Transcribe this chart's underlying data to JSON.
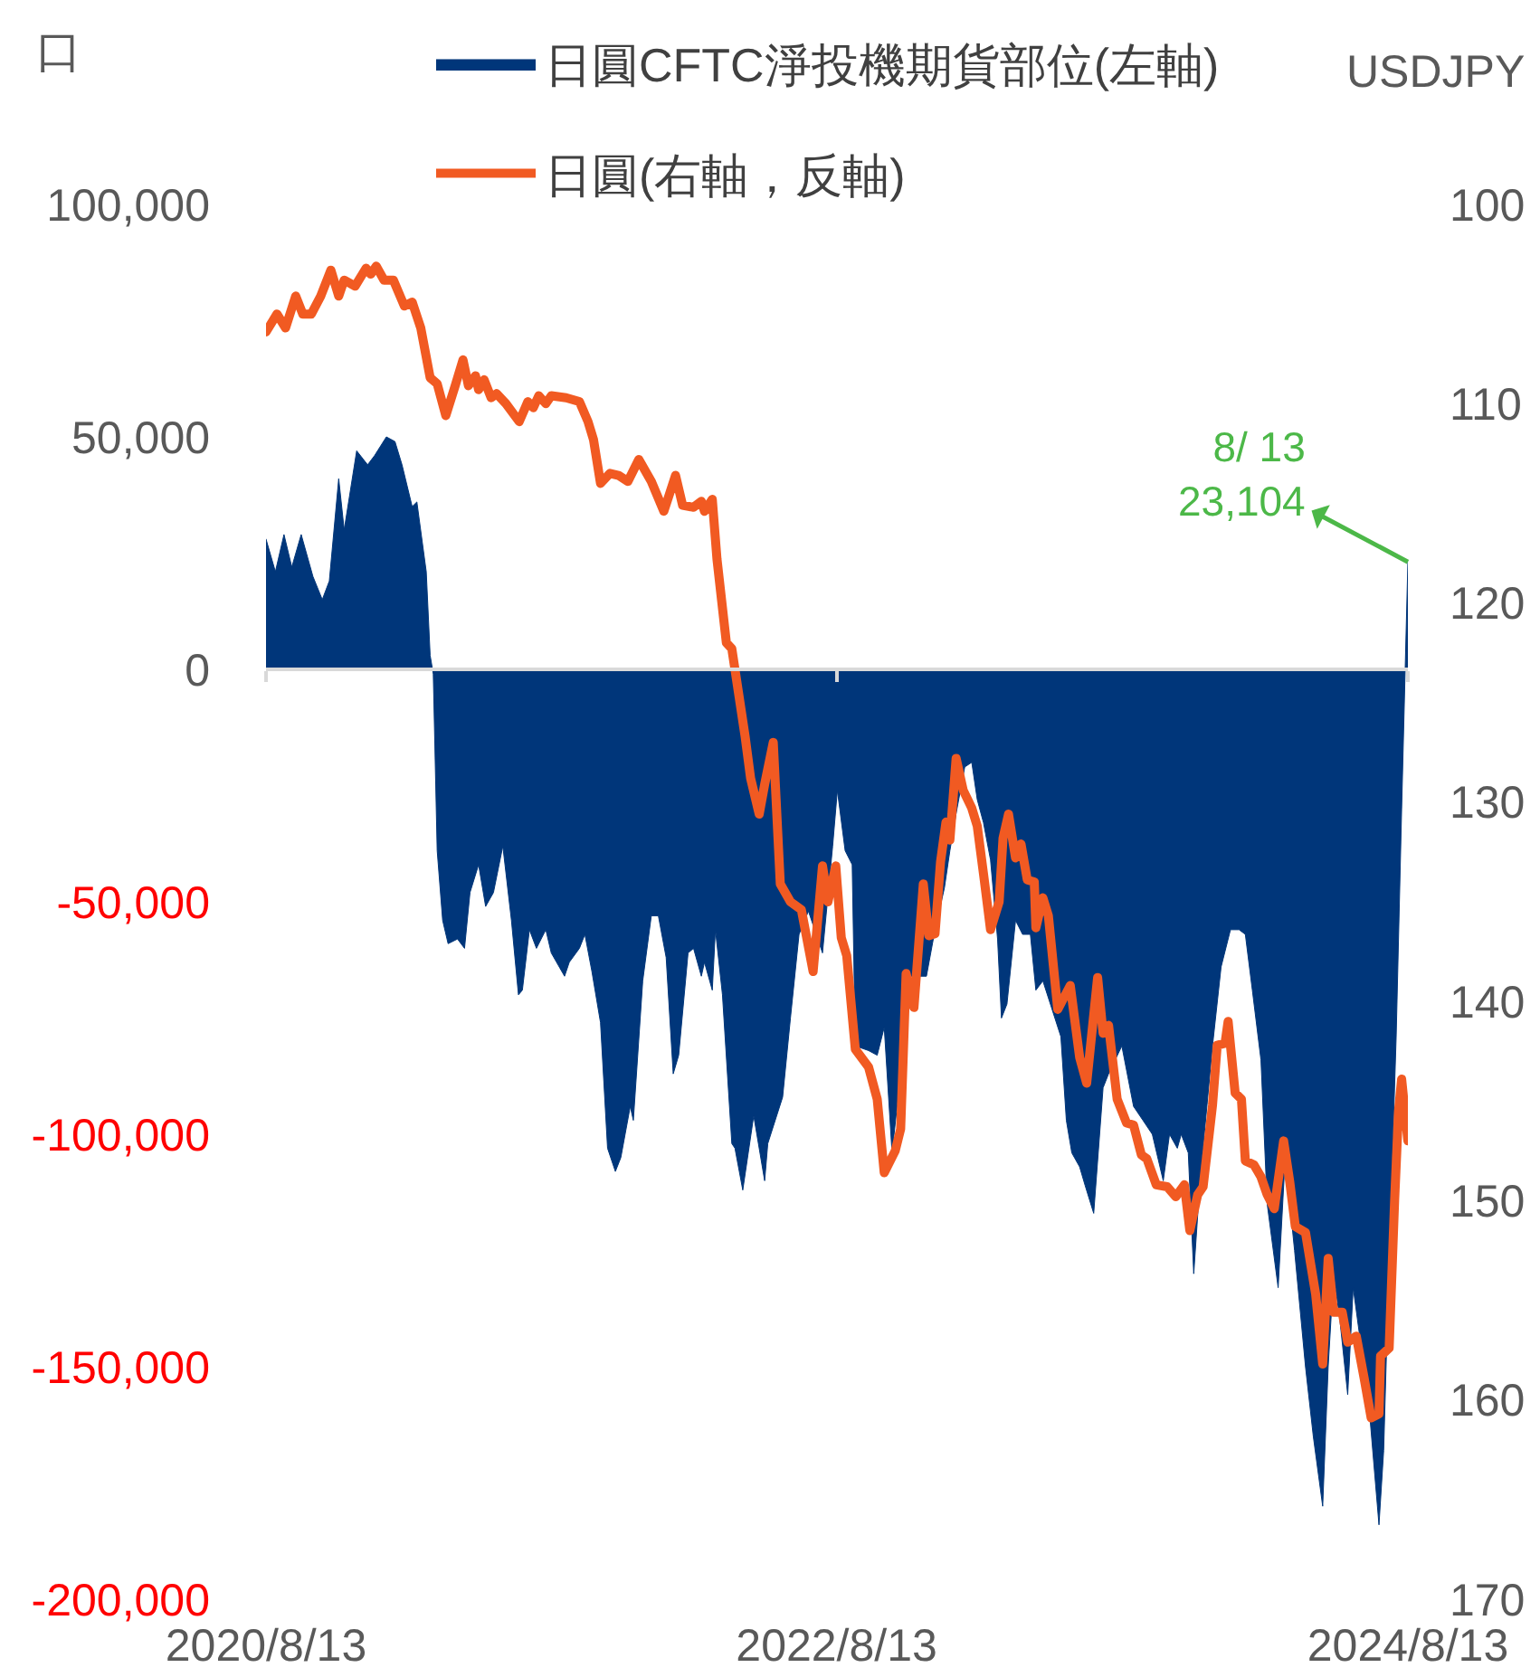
{
  "chart_data": {
    "type": "area",
    "ylabel": "口",
    "y2label": "USDJPY",
    "legend": "top",
    "grid": false,
    "xlim": [
      "2020-08-13",
      "2024-08-13"
    ],
    "xticks": [
      {
        "value": "2020-08-13",
        "label": "2020/8/13"
      },
      {
        "value": "2022-08-13",
        "label": "2022/8/13"
      },
      {
        "value": "2024-08-13",
        "label": "2024/8/13"
      }
    ],
    "ylim": [
      -200000,
      100000
    ],
    "yticks": [
      {
        "value": 100000,
        "label": "100,000"
      },
      {
        "value": 50000,
        "label": "50,000"
      },
      0,
      {
        "value": -50000,
        "label": "-50,000"
      },
      {
        "value": -100000,
        "label": "-100,000"
      },
      {
        "value": -150000,
        "label": "-150,000"
      },
      {
        "value": -200000,
        "label": "-200,000"
      }
    ],
    "y2lim": [
      170,
      100
    ],
    "y2ticks": [
      100,
      110,
      120,
      130,
      140,
      150,
      160,
      170
    ],
    "ref_lines": [
      {
        "axis": "y",
        "value": 0,
        "color": "#d9d9d9"
      }
    ],
    "annotations": [
      {
        "text": "8/ 13\n23,104",
        "x": "2024-08-13",
        "y": 23104
      }
    ],
    "series": [
      {
        "name": "日圓CFTC淨投機期貨部位(左軸)",
        "color": "#00367a",
        "x": [
          "2020-08-13",
          "2020-08-25",
          "2020-09-05",
          "2020-09-15",
          "2020-09-27",
          "2020-10-12",
          "2020-10-24",
          "2020-11-02",
          "2020-11-14",
          "2020-11-21",
          "2020-12-07",
          "2020-12-21",
          "2020-12-30",
          "2021-01-14",
          "2021-01-25",
          "2021-02-03",
          "2021-02-16",
          "2021-02-22",
          "2021-03-06",
          "2021-03-11",
          "2021-03-15",
          "2021-03-20",
          "2021-03-27",
          "2021-04-03",
          "2021-04-15",
          "2021-04-24",
          "2021-05-01",
          "2021-05-12",
          "2021-05-21",
          "2021-05-31",
          "2021-06-12",
          "2021-06-23",
          "2021-07-02",
          "2021-07-07",
          "2021-07-16",
          "2021-07-25",
          "2021-08-06",
          "2021-08-13",
          "2021-08-30",
          "2021-09-05",
          "2021-09-18",
          "2021-09-25",
          "2021-10-04",
          "2021-10-15",
          "2021-10-24",
          "2021-11-03",
          "2021-11-10",
          "2021-11-22",
          "2021-11-26",
          "2021-12-08",
          "2021-12-19",
          "2021-12-28",
          "2022-01-07",
          "2022-01-16",
          "2022-01-23",
          "2022-02-04",
          "2022-02-11",
          "2022-02-21",
          "2022-02-25",
          "2022-03-07",
          "2022-03-11",
          "2022-03-20",
          "2022-04-01",
          "2022-04-05",
          "2022-04-15",
          "2022-04-29",
          "2022-05-13",
          "2022-05-17",
          "2022-06-05",
          "2022-06-15",
          "2022-06-26",
          "2022-07-08",
          "2022-07-26",
          "2022-08-08",
          "2022-08-14",
          "2022-08-24",
          "2022-09-02",
          "2022-09-06",
          "2022-09-23",
          "2022-10-04",
          "2022-10-13",
          "2022-10-23",
          "2022-11-01",
          "2022-11-08",
          "2022-12-06",
          "2022-12-17",
          "2022-12-29",
          "2023-01-05",
          "2023-01-13",
          "2023-01-24",
          "2023-02-02",
          "2023-02-09",
          "2023-02-17",
          "2023-02-26",
          "2023-03-07",
          "2023-03-12",
          "2023-03-19",
          "2023-03-30",
          "2023-04-08",
          "2023-04-18",
          "2023-04-25",
          "2023-05-04",
          "2023-05-27",
          "2023-06-03",
          "2023-06-10",
          "2023-06-20",
          "2023-06-27",
          "2023-07-08",
          "2023-07-20",
          "2023-07-27",
          "2023-08-13",
          "2023-08-28",
          "2023-09-09",
          "2023-09-21",
          "2023-10-05",
          "2023-10-13",
          "2023-10-23",
          "2023-10-28",
          "2023-11-06",
          "2023-11-13",
          "2023-11-21",
          "2023-12-07",
          "2023-12-18",
          "2023-12-30",
          "2024-01-10",
          "2024-01-18",
          "2024-01-27",
          "2024-02-07",
          "2024-02-15",
          "2024-02-29",
          "2024-03-09",
          "2024-03-21",
          "2024-04-04",
          "2024-04-14",
          "2024-04-26",
          "2024-05-03",
          "2024-05-10",
          "2024-05-18",
          "2024-05-28",
          "2024-06-04",
          "2024-06-16",
          "2024-06-25",
          "2024-07-07",
          "2024-07-13",
          "2024-07-20",
          "2024-07-29",
          "2024-08-05",
          "2024-08-13"
        ],
        "values": [
          28000,
          21000,
          29000,
          22000,
          29000,
          20000,
          15000,
          19000,
          41000,
          30000,
          47000,
          44000,
          46000,
          50000,
          49000,
          44000,
          35000,
          36000,
          21000,
          3000,
          -1000,
          -39000,
          -54000,
          -59000,
          -58000,
          -60000,
          -48000,
          -42000,
          -51000,
          -48000,
          -38000,
          -54000,
          -70000,
          -69000,
          -56000,
          -60000,
          -56000,
          -61000,
          -66000,
          -63000,
          -60000,
          -57000,
          -65000,
          -76000,
          -103000,
          -108000,
          -105000,
          -94000,
          -97000,
          -67000,
          -53000,
          -53000,
          -62000,
          -87000,
          -83000,
          -61000,
          -60000,
          -66000,
          -63000,
          -69000,
          -56000,
          -70000,
          -102000,
          -103000,
          -112000,
          -96000,
          -110000,
          -102000,
          -92000,
          -75000,
          -57000,
          -52000,
          -61000,
          -38000,
          -26000,
          -39000,
          -42000,
          -81000,
          -82000,
          -83000,
          -77000,
          -104000,
          -90000,
          -66000,
          -66000,
          -56000,
          -47000,
          -39000,
          -31000,
          -21000,
          -20000,
          -28000,
          -33000,
          -41000,
          -58000,
          -75000,
          -72000,
          -54000,
          -57000,
          -57000,
          -69000,
          -67000,
          -79000,
          -97000,
          -104000,
          -107000,
          -111000,
          -117000,
          -90000,
          -87000,
          -81000,
          -94000,
          -97000,
          -100000,
          -110000,
          -100000,
          -103000,
          -100000,
          -104000,
          -130000,
          -110000,
          -81000,
          -64000,
          -56000,
          -56000,
          -57000,
          -69000,
          -84000,
          -115000,
          -133000,
          -105000,
          -125000,
          -150000,
          -165000,
          -180000,
          -150000,
          -130000,
          -140000,
          -156000,
          -133000,
          -148000,
          -160000,
          -184000,
          -168000,
          -127000,
          -79000,
          -30000,
          23104
        ]
      },
      {
        "name": "日圓(右軸，反軸)",
        "type": "line",
        "color": "#f15a22",
        "axis": "y2",
        "x": [
          "2020-08-13",
          "2020-08-27",
          "2020-09-07",
          "2020-09-20",
          "2020-09-29",
          "2020-10-10",
          "2020-10-22",
          "2020-11-04",
          "2020-11-14",
          "2020-11-21",
          "2020-12-05",
          "2020-12-19",
          "2020-12-25",
          "2021-01-01",
          "2021-01-11",
          "2021-01-23",
          "2021-02-06",
          "2021-02-16",
          "2021-02-27",
          "2021-03-11",
          "2021-03-20",
          "2021-03-31",
          "2021-04-12",
          "2021-04-22",
          "2021-04-29",
          "2021-05-08",
          "2021-05-12",
          "2021-05-19",
          "2021-05-28",
          "2021-06-04",
          "2021-06-16",
          "2021-07-03",
          "2021-07-14",
          "2021-07-21",
          "2021-07-28",
          "2021-08-06",
          "2021-08-13",
          "2021-09-01",
          "2021-09-18",
          "2021-09-29",
          "2021-10-06",
          "2021-10-15",
          "2021-10-27",
          "2021-11-07",
          "2021-11-19",
          "2021-12-03",
          "2021-12-19",
          "2022-01-04",
          "2022-01-19",
          "2022-01-28",
          "2022-02-11",
          "2022-02-21",
          "2022-02-25",
          "2022-03-07",
          "2022-03-13",
          "2022-03-25",
          "2022-04-01",
          "2022-04-18",
          "2022-04-25",
          "2022-05-06",
          "2022-05-13",
          "2022-05-24",
          "2022-06-02",
          "2022-06-15",
          "2022-06-29",
          "2022-07-14",
          "2022-07-26",
          "2022-08-02",
          "2022-08-12",
          "2022-08-19",
          "2022-08-26",
          "2022-09-06",
          "2022-09-23",
          "2022-10-04",
          "2022-10-13",
          "2022-10-27",
          "2022-11-03",
          "2022-11-10",
          "2022-11-20",
          "2022-12-02",
          "2022-12-09",
          "2022-12-17",
          "2022-12-24",
          "2022-12-31",
          "2023-01-05",
          "2023-01-13",
          "2023-01-22",
          "2023-02-02",
          "2023-02-09",
          "2023-02-17",
          "2023-02-26",
          "2023-03-09",
          "2023-03-14",
          "2023-03-21",
          "2023-03-30",
          "2023-04-06",
          "2023-04-14",
          "2023-04-23",
          "2023-04-25",
          "2023-05-04",
          "2023-05-11",
          "2023-05-23",
          "2023-06-08",
          "2023-06-20",
          "2023-06-29",
          "2023-07-13",
          "2023-07-20",
          "2023-07-27",
          "2023-08-07",
          "2023-08-19",
          "2023-08-28",
          "2023-09-07",
          "2023-09-14",
          "2023-09-26",
          "2023-10-10",
          "2023-10-21",
          "2023-11-01",
          "2023-11-08",
          "2023-11-18",
          "2023-11-25",
          "2023-12-07",
          "2023-12-13",
          "2023-12-23",
          "2023-12-27",
          "2024-01-05",
          "2024-01-13",
          "2024-01-18",
          "2024-01-29",
          "2024-02-07",
          "2024-02-15",
          "2024-02-24",
          "2024-03-07",
          "2024-03-15",
          "2024-03-22",
          "2024-04-04",
          "2024-04-17",
          "2024-04-26",
          "2024-05-03",
          "2024-05-10",
          "2024-05-21",
          "2024-05-28",
          "2024-06-08",
          "2024-06-18",
          "2024-06-27",
          "2024-07-07",
          "2024-07-09",
          "2024-07-20",
          "2024-07-27",
          "2024-08-01",
          "2024-08-05",
          "2024-08-13"
        ],
        "values": [
          106.4,
          105.5,
          106.2,
          104.6,
          105.5,
          105.5,
          104.6,
          103.3,
          104.6,
          103.8,
          104.1,
          103.2,
          103.5,
          103.1,
          103.8,
          103.8,
          105.1,
          104.9,
          106.2,
          108.7,
          109.0,
          110.6,
          109.1,
          107.8,
          109.1,
          108.6,
          109.3,
          108.8,
          109.7,
          109.5,
          110.0,
          110.9,
          109.9,
          110.2,
          109.6,
          110.0,
          109.6,
          109.7,
          109.9,
          110.9,
          111.8,
          114.0,
          113.5,
          113.6,
          113.9,
          112.8,
          113.9,
          115.4,
          113.6,
          115.1,
          115.2,
          114.9,
          115.4,
          114.8,
          117.8,
          122.0,
          122.3,
          126.7,
          128.8,
          130.6,
          129.1,
          127.0,
          134.1,
          135.0,
          135.4,
          138.5,
          133.2,
          135.0,
          133.2,
          136.8,
          137.7,
          142.4,
          143.3,
          144.9,
          148.6,
          147.5,
          146.4,
          138.6,
          140.3,
          134.1,
          136.7,
          136.6,
          133.0,
          131.0,
          131.9,
          127.8,
          129.4,
          130.3,
          131.2,
          133.6,
          136.4,
          135.0,
          131.8,
          130.6,
          132.8,
          132.1,
          133.9,
          134.0,
          136.3,
          134.8,
          135.7,
          140.4,
          139.2,
          142.8,
          144.1,
          138.8,
          141.6,
          141.2,
          144.9,
          146.1,
          146.2,
          147.7,
          147.9,
          149.2,
          149.3,
          149.8,
          149.2,
          151.5,
          149.7,
          149.3,
          145.2,
          142.2,
          142.1,
          141.0,
          144.6,
          144.9,
          148.0,
          148.2,
          148.8,
          149.7,
          150.4,
          147.0,
          149.1,
          151.3,
          151.6,
          154.7,
          158.2,
          152.9,
          155.6,
          155.6,
          157.1,
          156.8,
          158.9,
          160.9,
          160.7,
          157.8,
          157.4,
          150.0,
          145.5,
          143.9,
          147.0
        ]
      }
    ]
  }
}
